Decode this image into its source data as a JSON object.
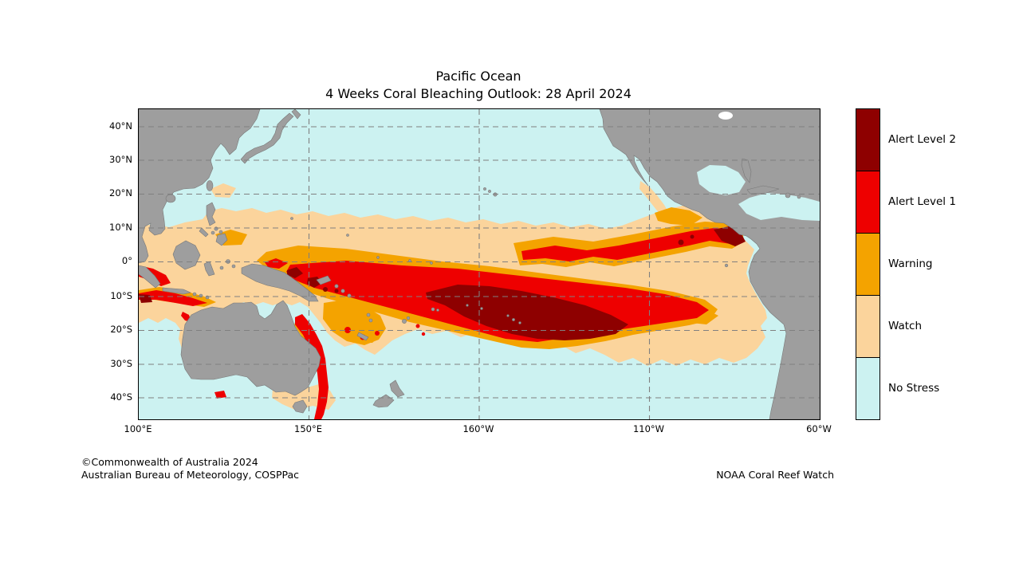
{
  "title": {
    "line1": "Pacific Ocean",
    "line2": "4 Weeks Coral Bleaching Outlook: 28 April 2024"
  },
  "map": {
    "lat_ticks": [
      "40°N",
      "30°N",
      "20°N",
      "10°N",
      "0°",
      "10°S",
      "20°S",
      "30°S",
      "40°S"
    ],
    "lon_ticks": [
      "100°E",
      "150°E",
      "160°W",
      "110°W",
      "60°W"
    ],
    "colors": {
      "ocean_no_stress": "#CCF2F1",
      "land": "#9E9E9E",
      "lake": "#FFFFFF",
      "watch": "#FBD49C",
      "warning": "#F4A300",
      "alert_level_1": "#EE0000",
      "alert_level_2": "#8E0000",
      "gridline": "#808080"
    }
  },
  "legend": {
    "items": [
      {
        "label": "Alert Level 2",
        "color": "#8E0000"
      },
      {
        "label": "Alert Level 1",
        "color": "#EE0000"
      },
      {
        "label": "Warning",
        "color": "#F4A300"
      },
      {
        "label": "Watch",
        "color": "#FBD49C"
      },
      {
        "label": "No Stress",
        "color": "#CCF2F1"
      }
    ]
  },
  "footer": {
    "copyright_line1": "©Commonwealth of Australia 2024",
    "copyright_line2": "Australian Bureau of Meteorology, COSPPac",
    "credit_right": "NOAA Coral Reef Watch"
  }
}
